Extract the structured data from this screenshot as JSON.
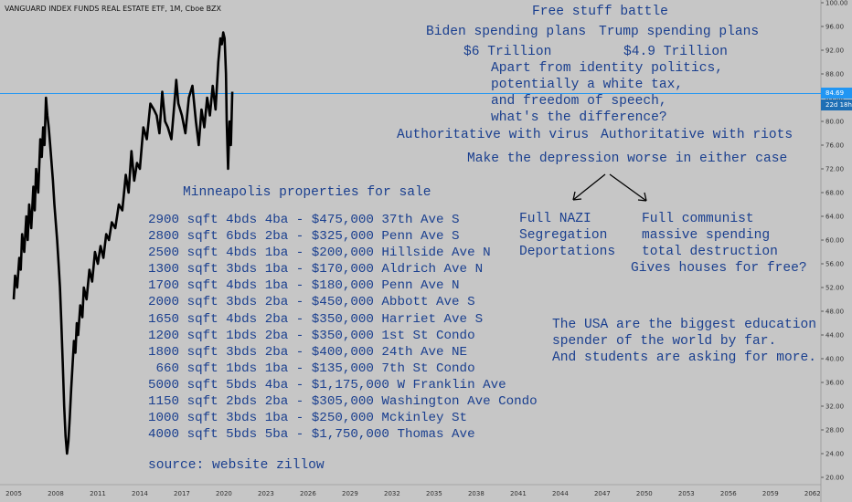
{
  "header": {
    "symbol_line": "VANGUARD INDEX FUNDS REAL ESTATE ETF, 1M, Cboe BZX"
  },
  "price_tag": {
    "value": "84.69",
    "countdown": "22d 18h",
    "color": "#2196f3"
  },
  "colors": {
    "background": "#c6c6c6",
    "annotation": "#1a3f8f",
    "series": "#000000",
    "price_line": "#2196f3"
  },
  "annotations": {
    "title": "Free stuff battle",
    "biden_label": "Biden spending plans",
    "trump_label": "Trump spending plans",
    "biden_amount": "$6 Trillion",
    "trump_amount": "$4.9 Trillion",
    "question_1": "Apart from identity politics,",
    "question_2": "potentially a white tax,",
    "question_3": "and freedom of speech,",
    "question_4": "what's the difference?",
    "virus": "Authoritative with virus",
    "riots": "Authoritative with riots",
    "depression": "Make the depression worse in either case",
    "left_1": "Full NAZI",
    "left_2": "Segregation",
    "left_3": "Deportations",
    "right_1": "Full communist",
    "right_2": "massive spending",
    "right_3": "total destruction",
    "right_4": "Gives houses for free?",
    "edu_1": "The USA are the biggest education",
    "edu_2": "spender of the world by far.",
    "edu_3": "And students are asking for more.",
    "mpls_title": "Minneapolis properties for sale",
    "source": "source: website zillow"
  },
  "listings": [
    "2900 sqft 4bds 4ba - $475,000 37th Ave S",
    "2800 sqft 6bds 2ba - $325,000 Penn Ave S",
    "2500 sqft 4bds 1ba - $200,000 Hillside Ave N",
    "1300 sqft 3bds 1ba - $170,000 Aldrich Ave N",
    "1700 sqft 4bds 1ba - $180,000 Penn Ave N",
    "2000 sqft 3bds 2ba - $450,000 Abbott Ave S",
    "1650 sqft 4bds 2ba - $350,000 Harriet Ave S",
    "1200 sqft 1bds 2ba - $350,000 1st St Condo",
    "1800 sqft 3bds 2ba - $400,000 24th Ave NE",
    " 660 sqft 1bds 1ba - $135,000 7th St Condo",
    "5000 sqft 5bds 4ba - $1,175,000 W Franklin Ave",
    "1150 sqft 2bds 2ba - $305,000 Washington Ave Condo",
    "1000 sqft 3bds 1ba - $250,000 Mckinley St",
    "4000 sqft 5bds 5ba - $1,750,000 Thomas Ave"
  ],
  "chart_data": {
    "type": "line",
    "title": "VANGUARD INDEX FUNDS REAL ESTATE ETF, 1M, Cboe BZX",
    "xlabel": "",
    "ylabel": "",
    "xlim": [
      2004.5,
      2063.5
    ],
    "ylim": [
      19.5,
      100.5
    ],
    "x_ticks": [
      "2005",
      "2008",
      "2011",
      "2014",
      "2017",
      "2020",
      "2023",
      "2026",
      "2029",
      "2032",
      "2035",
      "2038",
      "2041",
      "2044",
      "2047",
      "2050",
      "2053",
      "2056",
      "2059",
      "2062"
    ],
    "y_ticks": [
      "20.00",
      "24.00",
      "28.00",
      "32.00",
      "36.00",
      "40.00",
      "44.00",
      "48.00",
      "52.00",
      "56.00",
      "60.00",
      "64.00",
      "68.00",
      "72.00",
      "76.00",
      "80.00",
      "84.00",
      "88.00",
      "92.00",
      "96.00",
      "100.00"
    ],
    "last_price": 84.69,
    "grid": false,
    "series": [
      {
        "x": [
          2005.0,
          2005.1,
          2005.25,
          2005.4,
          2005.5,
          2005.6,
          2005.75,
          2005.9,
          2006.0,
          2006.1,
          2006.25,
          2006.4,
          2006.5,
          2006.6,
          2006.75,
          2006.9,
          2007.0,
          2007.1,
          2007.2,
          2007.3,
          2007.4,
          2007.5,
          2007.6,
          2007.7,
          2007.8,
          2007.9,
          2008.0,
          2008.1,
          2008.2,
          2008.3,
          2008.4,
          2008.5,
          2008.6,
          2008.7,
          2008.8,
          2008.9,
          2009.0,
          2009.1,
          2009.2,
          2009.3,
          2009.4,
          2009.5,
          2009.6,
          2009.75,
          2009.9,
          2010.0,
          2010.2,
          2010.4,
          2010.6,
          2010.8,
          2011.0,
          2011.2,
          2011.4,
          2011.6,
          2011.8,
          2012.0,
          2012.25,
          2012.5,
          2012.75,
          2013.0,
          2013.2,
          2013.4,
          2013.6,
          2013.8,
          2014.0,
          2014.25,
          2014.5,
          2014.75,
          2015.0,
          2015.2,
          2015.4,
          2015.6,
          2015.8,
          2016.0,
          2016.25,
          2016.5,
          2016.6,
          2016.75,
          2017.0,
          2017.25,
          2017.5,
          2017.75,
          2018.0,
          2018.2,
          2018.4,
          2018.6,
          2018.8,
          2019.0,
          2019.2,
          2019.4,
          2019.6,
          2019.75,
          2019.85,
          2019.95,
          2020.05,
          2020.15,
          2020.2,
          2020.3,
          2020.4,
          2020.5,
          2020.6
        ],
        "values": [
          50,
          54,
          52,
          57,
          55,
          61,
          58,
          64,
          60,
          66,
          62,
          69,
          65,
          72,
          68,
          77,
          74,
          79,
          76,
          84,
          81,
          79,
          76,
          73,
          70,
          66,
          63,
          60,
          56,
          52,
          46,
          39,
          32,
          27,
          24,
          26,
          30,
          35,
          39,
          43,
          41,
          46,
          44,
          49,
          47,
          52,
          50,
          55,
          53,
          58,
          56,
          59,
          57,
          61,
          60,
          63,
          62,
          66,
          65,
          71,
          68,
          75,
          70,
          73,
          72,
          79,
          77,
          83,
          82,
          81,
          78,
          85,
          80,
          79,
          77,
          84,
          87,
          83,
          81,
          78,
          84,
          86,
          80,
          76,
          82,
          79,
          84,
          81,
          86,
          82,
          90,
          94,
          93,
          95,
          94,
          88,
          80,
          72,
          80,
          76,
          85
        ]
      }
    ]
  }
}
